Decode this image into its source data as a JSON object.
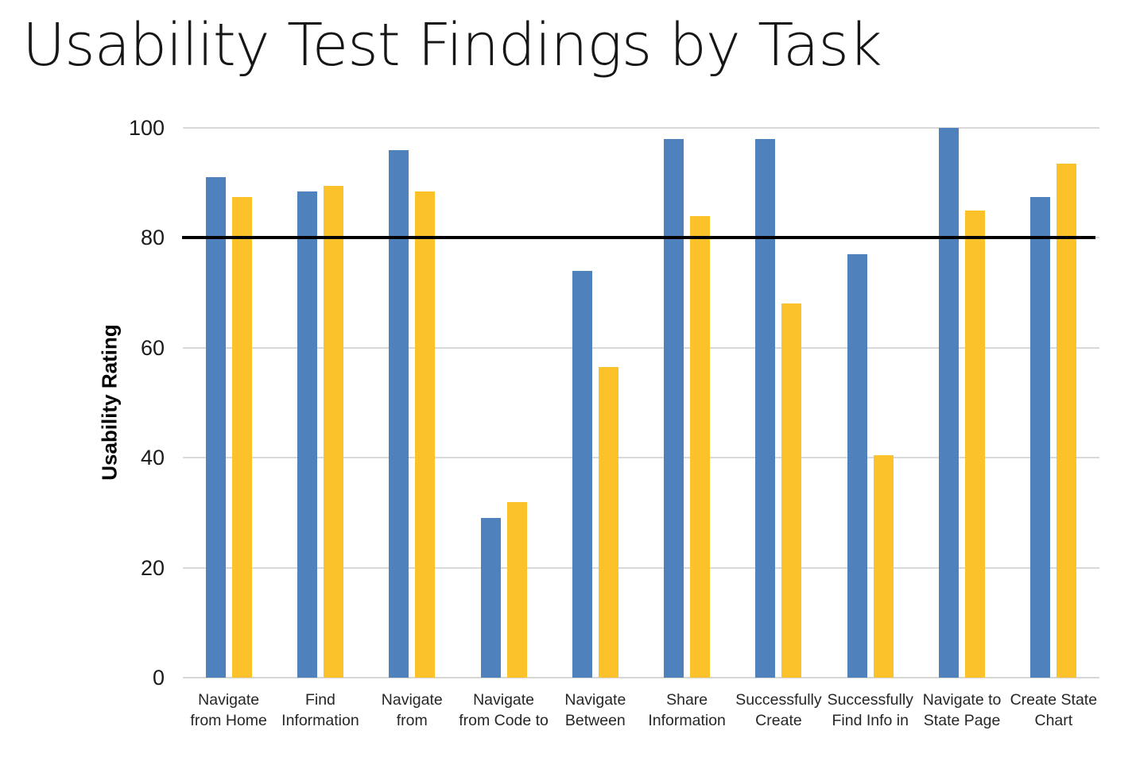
{
  "title": "Usability Test Findings by Task",
  "colors": {
    "background": "#ffffff",
    "gridline": "#d9d9d9",
    "reference_line": "#000000",
    "axis_text": "#262626",
    "title_text": "#161616",
    "series_blue": "#4F81BD",
    "series_gold": "#FCC22C"
  },
  "chart_data": {
    "type": "bar",
    "title": "Usability Test Findings by Task",
    "xlabel": "",
    "ylabel": "Usability Rating",
    "ylim": [
      0,
      100
    ],
    "yticks": [
      0,
      20,
      40,
      60,
      80,
      100
    ],
    "grid": true,
    "legend": "none",
    "reference_line": {
      "value": 80,
      "color": "#000000"
    },
    "categories": [
      "Navigate from Home",
      "Find Information",
      "Navigate from",
      "Navigate from Code to",
      "Navigate Between",
      "Share Information",
      "Successfully Create",
      "Successfully Find Info in",
      "Navigate to State Page",
      "Create State Chart"
    ],
    "categories_lines": [
      [
        "Navigate",
        "from Home"
      ],
      [
        "Find",
        "Information"
      ],
      [
        "Navigate",
        "from"
      ],
      [
        "Navigate",
        "from Code to"
      ],
      [
        "Navigate",
        "Between"
      ],
      [
        "Share",
        "Information"
      ],
      [
        "Successfully",
        "Create"
      ],
      [
        "Successfully",
        "Find Info in"
      ],
      [
        "Navigate to",
        "State Page"
      ],
      [
        "Create State",
        "Chart"
      ]
    ],
    "series": [
      {
        "id": "blue",
        "color": "#4F81BD",
        "values": [
          91,
          88.5,
          96,
          29,
          74,
          98,
          98,
          77,
          100,
          87.5
        ]
      },
      {
        "id": "gold",
        "color": "#FCC22C",
        "values": [
          87.5,
          89.5,
          88.5,
          32,
          56.5,
          84,
          68,
          40.5,
          85,
          93.5
        ]
      }
    ]
  }
}
